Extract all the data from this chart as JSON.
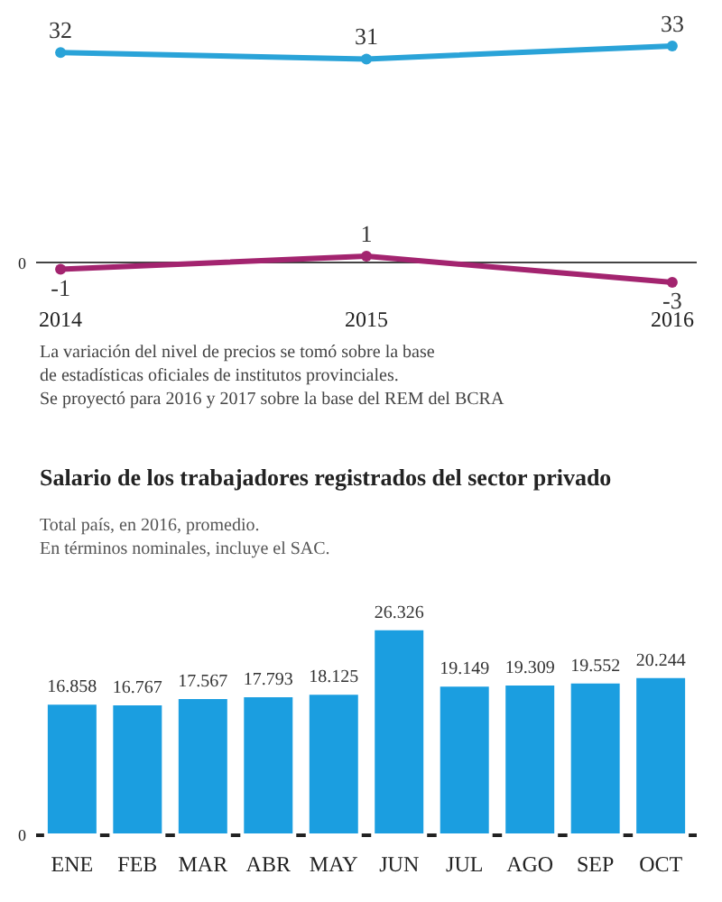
{
  "chart_data": [
    {
      "type": "line",
      "categories": [
        "2014",
        "2015",
        "2016"
      ],
      "series": [
        {
          "color": "#2aa3d8",
          "values": [
            32,
            31,
            33
          ]
        },
        {
          "color": "#a3246f",
          "values": [
            -1,
            1,
            -3
          ]
        }
      ],
      "data_labels": true,
      "marker": "circle",
      "line_style": "solid",
      "annotations": [
        "0",
        "La variación del nivel de precios se tomó sobre la base\nde estadísticas oficiales de institutos provinciales.\nSe proyectó para 2016 y 2017 sobre la base del REM del BCRA"
      ]
    },
    {
      "type": "bar",
      "title": "Salario de los trabajadores registrados del sector privado",
      "subtitle": "Total país, en 2016, promedio.\nEn términos nominales, incluye el SAC.",
      "categories": [
        "ENE",
        "FEB",
        "MAR",
        "ABR",
        "MAY",
        "JUN",
        "JUL",
        "AGO",
        "SEP",
        "OCT"
      ],
      "series": [
        {
          "color": "#1b9ee0",
          "values": [
            16858,
            16767,
            17567,
            17793,
            18125,
            26326,
            19149,
            19309,
            19552,
            20244
          ],
          "value_labels": [
            "16.858",
            "16.767",
            "17.567",
            "17.793",
            "18.125",
            "26.326",
            "19.149",
            "19.309",
            "19.552",
            "20.244"
          ]
        }
      ],
      "annotations": [
        "0"
      ]
    }
  ]
}
